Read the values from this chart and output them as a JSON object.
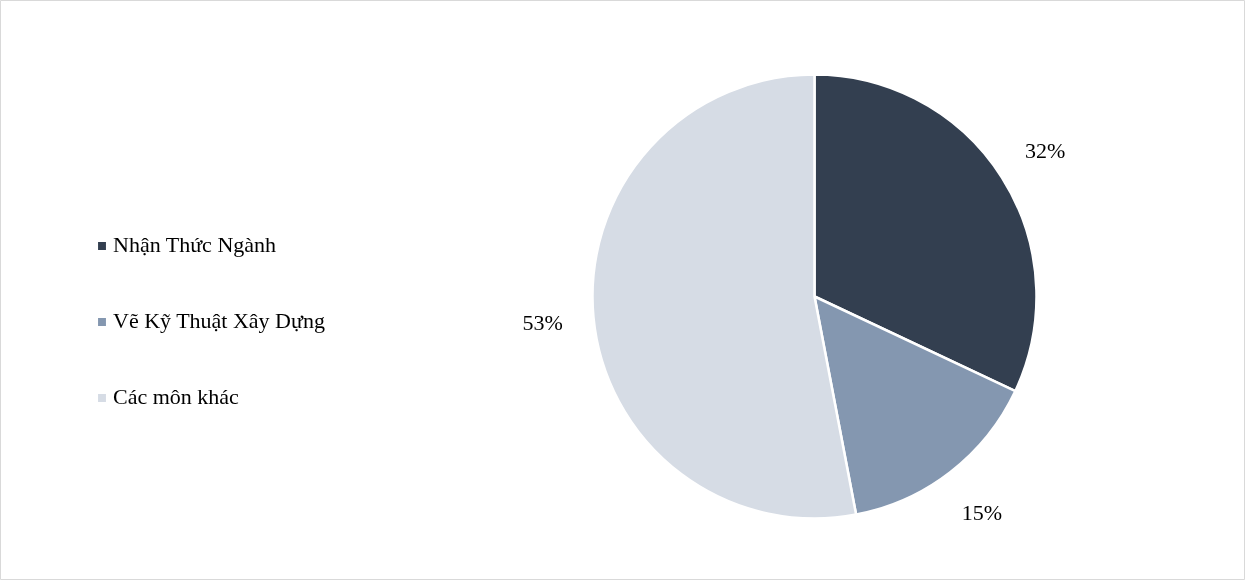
{
  "chart_data": {
    "type": "pie",
    "categories": [
      "Nhận Thức Ngành",
      "Vẽ Kỹ Thuật Xây Dựng",
      "Các môn khác"
    ],
    "values": [
      32,
      15,
      53
    ],
    "colors": [
      "#333f50",
      "#8497b0",
      "#d6dce5"
    ],
    "value_labels": [
      "32%",
      "15%",
      "53%"
    ],
    "legend": "left"
  }
}
